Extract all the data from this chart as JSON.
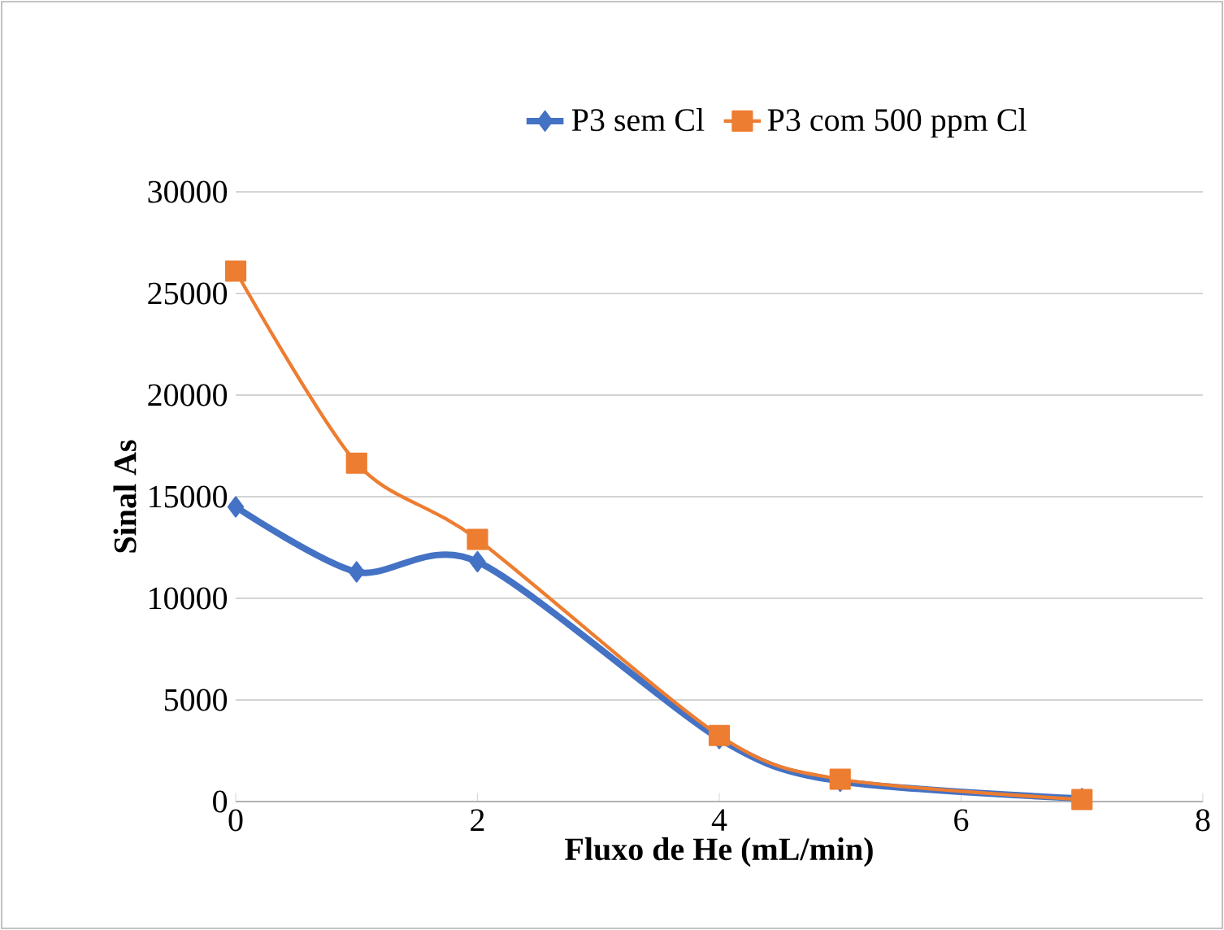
{
  "chart_data": {
    "type": "line",
    "xlabel": "Fluxo de He (mL/min)",
    "ylabel": "Sinal As",
    "xlim": [
      0,
      8
    ],
    "xticks": [
      0,
      2,
      4,
      6,
      8
    ],
    "ylim": [
      0,
      30000
    ],
    "yticks": [
      0,
      5000,
      10000,
      15000,
      20000,
      25000,
      30000
    ],
    "x": [
      0,
      1,
      2,
      4,
      5,
      7
    ],
    "series": [
      {
        "name": "P3 sem Cl",
        "color": "#4472c4",
        "marker": "diamond",
        "values": [
          14500,
          11300,
          11800,
          3100,
          1000,
          150
        ]
      },
      {
        "name": "P3 com 500 ppm Cl",
        "color": "#ed7d31",
        "marker": "square",
        "values": [
          26100,
          16650,
          12900,
          3250,
          1100,
          100
        ]
      }
    ],
    "grid": "y",
    "legend": "top"
  }
}
